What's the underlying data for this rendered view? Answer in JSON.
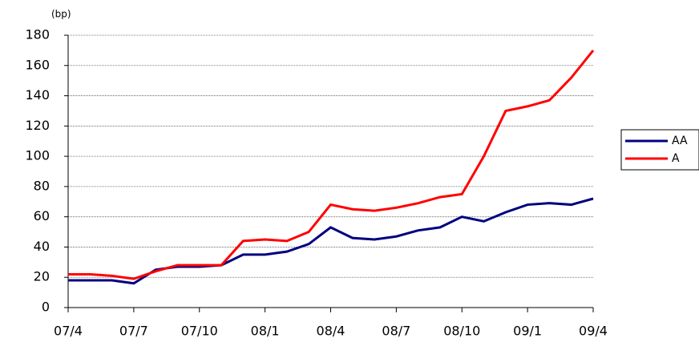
{
  "chart_data": {
    "type": "line",
    "y_unit_label": "(bp)",
    "categories": [
      "07/4",
      null,
      null,
      "07/7",
      null,
      null,
      "07/10",
      null,
      null,
      "08/1",
      null,
      null,
      "08/4",
      null,
      null,
      "08/7",
      null,
      null,
      "08/10",
      null,
      null,
      "09/1",
      null,
      null,
      "09/4"
    ],
    "series": [
      {
        "name": "AA",
        "color": "#000080",
        "values": [
          18,
          18,
          18,
          16,
          25,
          27,
          27,
          28,
          35,
          35,
          37,
          42,
          53,
          46,
          45,
          47,
          51,
          53,
          60,
          57,
          63,
          68,
          69,
          68,
          72
        ]
      },
      {
        "name": "A",
        "color": "#ff0000",
        "values": [
          22,
          22,
          21,
          19,
          24,
          28,
          28,
          28,
          44,
          45,
          44,
          50,
          68,
          65,
          64,
          66,
          69,
          73,
          75,
          100,
          130,
          133,
          137,
          152,
          170
        ]
      }
    ],
    "ylim": [
      0,
      180
    ],
    "yticks": [
      0,
      20,
      40,
      60,
      80,
      100,
      120,
      140,
      160,
      180
    ],
    "grid": true,
    "legend": "right"
  }
}
